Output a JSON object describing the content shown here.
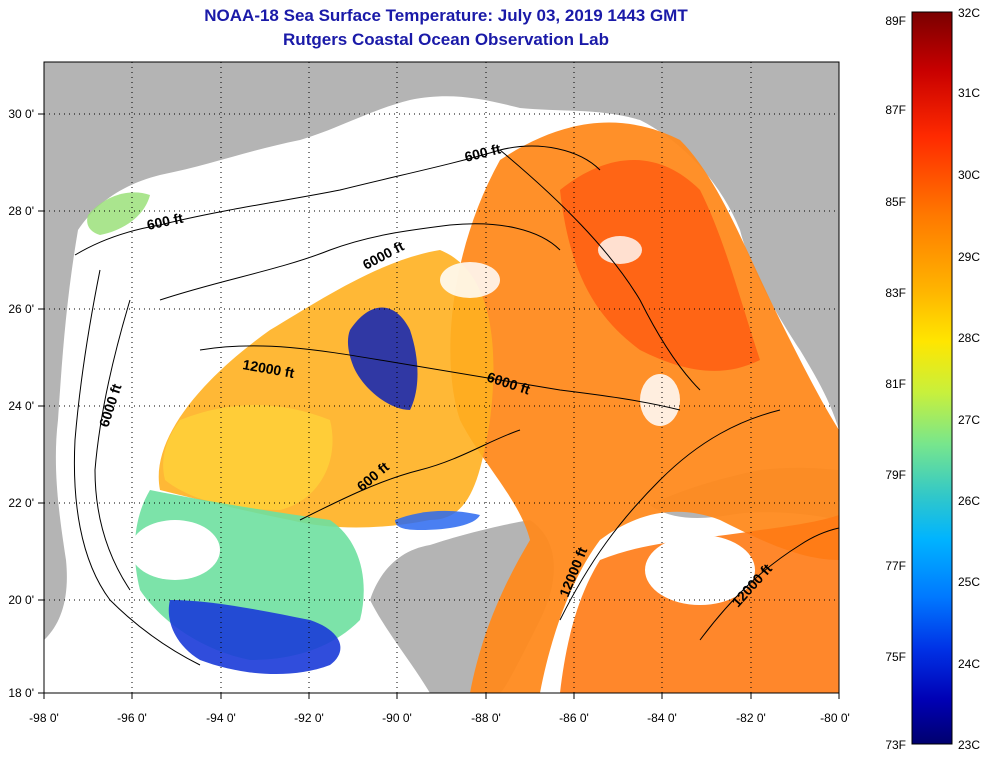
{
  "title": {
    "line1": "NOAA-18 Sea Surface Temperature:  July 03, 2019 1443 GMT",
    "line2": "Rutgers Coastal Ocean Observation Lab"
  },
  "axes": {
    "lon_labels": [
      "-98 0'",
      "-96 0'",
      "-94 0'",
      "-92 0'",
      "-90 0'",
      "-88 0'",
      "-86 0'",
      "-84 0'",
      "-82 0'",
      "-80 0'"
    ],
    "lat_labels": [
      "30 0'",
      "28 0'",
      "26 0'",
      "24 0'",
      "22 0'",
      "20 0'",
      "18 0'"
    ],
    "lon_range": [
      -98,
      -80
    ],
    "lat_range": [
      18,
      31
    ]
  },
  "contours": {
    "c1": "600 ft",
    "c2": "600 ft",
    "c3": "6000 ft",
    "c4": "12000 ft",
    "c5": "6000 ft",
    "c6": "6000 ft",
    "c7": "600 ft",
    "c8": "12000 ft",
    "c9": "12000 ft"
  },
  "colorbar": {
    "fahrenheit": [
      "89F",
      "87F",
      "85F",
      "83F",
      "81F",
      "79F",
      "77F",
      "75F",
      "73F"
    ],
    "celsius": [
      "32C",
      "31C",
      "30C",
      "29C",
      "28C",
      "27C",
      "26C",
      "25C",
      "24C",
      "23C"
    ],
    "colors": [
      "#7a0000",
      "#c80000",
      "#ff2a00",
      "#ff7a00",
      "#ffb400",
      "#ffe600",
      "#c8f03c",
      "#78e68c",
      "#32c8c8",
      "#00b4ff",
      "#0078ff",
      "#0032e6",
      "#0000b4",
      "#00006e"
    ]
  },
  "colors": {
    "title": "#1a1aa8",
    "land": "#b4b4b4",
    "cloud": "#ffffff"
  }
}
